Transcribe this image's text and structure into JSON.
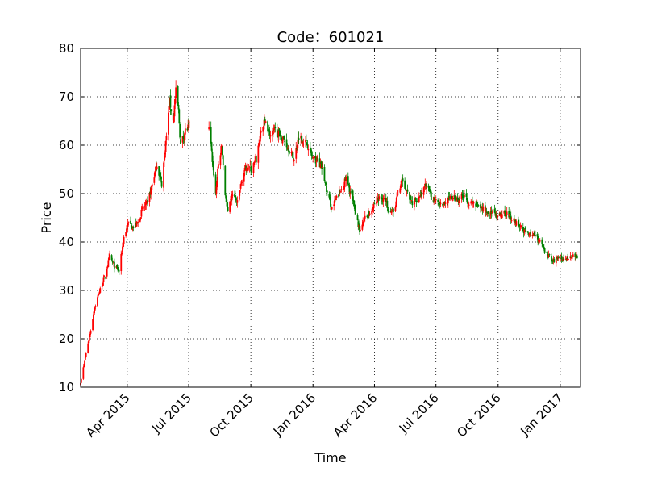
{
  "chart_data": {
    "type": "candlestick",
    "title": "Code：601021",
    "xlabel": "Time",
    "ylabel": "Price",
    "ylim": [
      10,
      80
    ],
    "xlim": [
      "2015-01-22",
      "2017-01-31"
    ],
    "yticks": [
      10,
      20,
      30,
      40,
      50,
      60,
      70,
      80
    ],
    "xticks": [
      {
        "date": "2015-04-01",
        "label": "Apr 2015"
      },
      {
        "date": "2015-07-01",
        "label": "Jul 2015"
      },
      {
        "date": "2015-10-01",
        "label": "Oct 2015"
      },
      {
        "date": "2016-01-01",
        "label": "Jan 2016"
      },
      {
        "date": "2016-04-01",
        "label": "Apr 2016"
      },
      {
        "date": "2016-07-01",
        "label": "Jul 2016"
      },
      {
        "date": "2016-10-01",
        "label": "Oct 2016"
      },
      {
        "date": "2017-01-01",
        "label": "Jan 2017"
      }
    ],
    "grid": true,
    "colors": {
      "up": "#ff0000",
      "down": "#008000"
    },
    "close_path": [
      [
        "2015-01-22",
        11
      ],
      [
        "2015-01-30",
        17
      ],
      [
        "2015-02-05",
        21
      ],
      [
        "2015-02-11",
        26
      ],
      [
        "2015-02-17",
        29
      ],
      [
        "2015-02-27",
        33
      ],
      [
        "2015-03-06",
        37
      ],
      [
        "2015-03-13",
        35
      ],
      [
        "2015-03-20",
        34
      ],
      [
        "2015-03-27",
        41
      ],
      [
        "2015-04-03",
        44
      ],
      [
        "2015-04-10",
        43
      ],
      [
        "2015-04-17",
        44
      ],
      [
        "2015-04-24",
        47
      ],
      [
        "2015-05-01",
        48
      ],
      [
        "2015-05-08",
        52
      ],
      [
        "2015-05-15",
        56
      ],
      [
        "2015-05-22",
        52
      ],
      [
        "2015-05-29",
        62
      ],
      [
        "2015-06-03",
        69
      ],
      [
        "2015-06-08",
        65
      ],
      [
        "2015-06-12",
        71
      ],
      [
        "2015-06-16",
        67
      ],
      [
        "2015-06-19",
        60
      ],
      [
        "2015-06-26",
        63
      ],
      [
        "2015-07-03",
        64
      ],
      [
        "2015-07-08",
        null
      ],
      [
        "2015-07-31",
        64
      ],
      [
        "2015-08-05",
        57
      ],
      [
        "2015-08-10",
        50
      ],
      [
        "2015-08-14",
        56
      ],
      [
        "2015-08-19",
        60
      ],
      [
        "2015-08-24",
        50
      ],
      [
        "2015-08-28",
        46
      ],
      [
        "2015-09-04",
        50
      ],
      [
        "2015-09-11",
        48
      ],
      [
        "2015-09-18",
        53
      ],
      [
        "2015-09-25",
        56
      ],
      [
        "2015-10-02",
        55
      ],
      [
        "2015-10-09",
        57
      ],
      [
        "2015-10-16",
        63
      ],
      [
        "2015-10-23",
        65
      ],
      [
        "2015-10-30",
        62
      ],
      [
        "2015-11-06",
        63
      ],
      [
        "2015-11-13",
        62
      ],
      [
        "2015-11-20",
        61
      ],
      [
        "2015-11-27",
        59
      ],
      [
        "2015-12-04",
        57
      ],
      [
        "2015-12-11",
        62
      ],
      [
        "2015-12-18",
        61
      ],
      [
        "2015-12-25",
        60
      ],
      [
        "2016-01-01",
        57
      ],
      [
        "2016-01-08",
        57
      ],
      [
        "2016-01-15",
        55
      ],
      [
        "2016-01-22",
        50
      ],
      [
        "2016-01-29",
        47
      ],
      [
        "2016-02-05",
        49
      ],
      [
        "2016-02-19",
        53
      ],
      [
        "2016-02-26",
        50
      ],
      [
        "2016-03-04",
        46
      ],
      [
        "2016-03-11",
        42
      ],
      [
        "2016-03-18",
        45
      ],
      [
        "2016-03-25",
        46
      ],
      [
        "2016-04-01",
        48
      ],
      [
        "2016-04-08",
        49
      ],
      [
        "2016-04-15",
        49
      ],
      [
        "2016-04-22",
        47
      ],
      [
        "2016-04-29",
        46
      ],
      [
        "2016-05-06",
        50
      ],
      [
        "2016-05-13",
        53
      ],
      [
        "2016-05-20",
        50
      ],
      [
        "2016-05-27",
        48
      ],
      [
        "2016-06-03",
        49
      ],
      [
        "2016-06-10",
        50
      ],
      [
        "2016-06-17",
        52
      ],
      [
        "2016-06-24",
        49
      ],
      [
        "2016-07-01",
        49
      ],
      [
        "2016-07-08",
        48
      ],
      [
        "2016-07-15",
        48
      ],
      [
        "2016-07-22",
        49
      ],
      [
        "2016-07-29",
        49
      ],
      [
        "2016-08-05",
        49
      ],
      [
        "2016-08-12",
        50
      ],
      [
        "2016-08-19",
        48
      ],
      [
        "2016-08-26",
        48
      ],
      [
        "2016-09-02",
        47
      ],
      [
        "2016-09-09",
        47
      ],
      [
        "2016-09-16",
        46
      ],
      [
        "2016-09-23",
        46
      ],
      [
        "2016-09-30",
        45
      ],
      [
        "2016-10-14",
        46
      ],
      [
        "2016-10-21",
        45
      ],
      [
        "2016-10-28",
        44
      ],
      [
        "2016-11-04",
        43
      ],
      [
        "2016-11-11",
        42
      ],
      [
        "2016-11-18",
        42
      ],
      [
        "2016-11-25",
        41
      ],
      [
        "2016-12-02",
        40
      ],
      [
        "2016-12-09",
        38
      ],
      [
        "2016-12-16",
        37
      ],
      [
        "2016-12-23",
        36
      ],
      [
        "2016-12-30",
        37
      ],
      [
        "2017-01-06",
        36
      ],
      [
        "2017-01-13",
        37
      ],
      [
        "2017-01-20",
        37
      ],
      [
        "2017-01-27",
        37
      ]
    ]
  }
}
